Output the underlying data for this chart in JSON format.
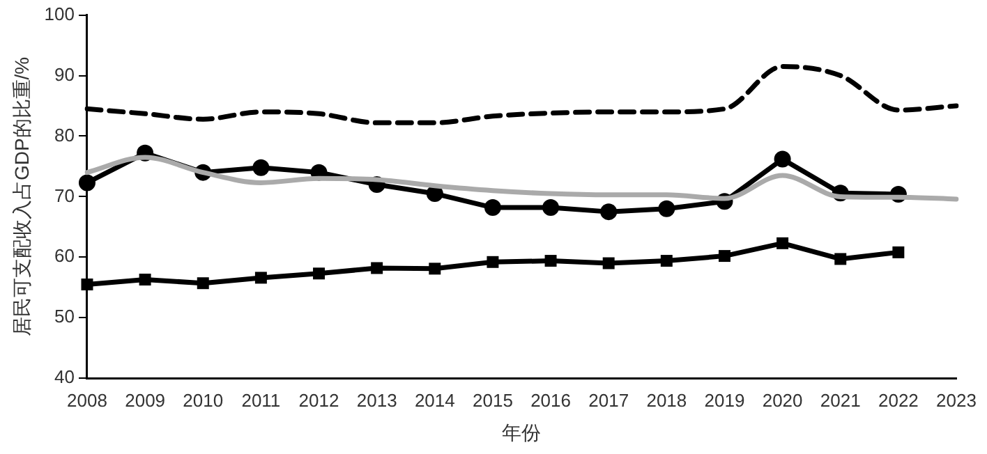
{
  "chart_data": {
    "type": "line",
    "xlabel": "年份",
    "ylabel": "居民可支配收入占GDP的比重/%",
    "categories": [
      "2008",
      "2009",
      "2010",
      "2011",
      "2012",
      "2013",
      "2014",
      "2015",
      "2016",
      "2017",
      "2018",
      "2019",
      "2020",
      "2021",
      "2022",
      "2023"
    ],
    "ylim": [
      40,
      100
    ],
    "yticks": [
      40,
      50,
      60,
      70,
      80,
      90,
      100
    ],
    "grid": false,
    "legend": false,
    "series": [
      {
        "color": "#000000",
        "line_style": "dashed",
        "marker": "none",
        "values": [
          84.5,
          83.7,
          82.8,
          84,
          83.7,
          82.2,
          82.2,
          83.3,
          83.8,
          84,
          84,
          84.5,
          91.5,
          90,
          84.3,
          85
        ]
      },
      {
        "color": "#aaaaaa",
        "line_style": "solid",
        "marker": "none",
        "values": [
          74,
          76.5,
          74,
          72.3,
          73,
          72.8,
          71.8,
          71,
          70.5,
          70.3,
          70.3,
          69.7,
          73.5,
          70,
          69.9,
          69.6
        ]
      },
      {
        "color": "#000000",
        "line_style": "solid",
        "marker": "circle",
        "values": [
          72.3,
          77.2,
          74,
          74.8,
          74,
          72,
          70.5,
          68.2,
          68.2,
          67.5,
          68,
          69.2,
          76.2,
          70.6,
          70.4,
          null
        ]
      },
      {
        "color": "#000000",
        "line_style": "solid",
        "marker": "square",
        "values": [
          55.5,
          56.3,
          55.7,
          56.6,
          57.3,
          58.2,
          58.1,
          59.2,
          59.4,
          59,
          59.4,
          60.2,
          62.3,
          59.7,
          60.8,
          null
        ]
      }
    ]
  }
}
